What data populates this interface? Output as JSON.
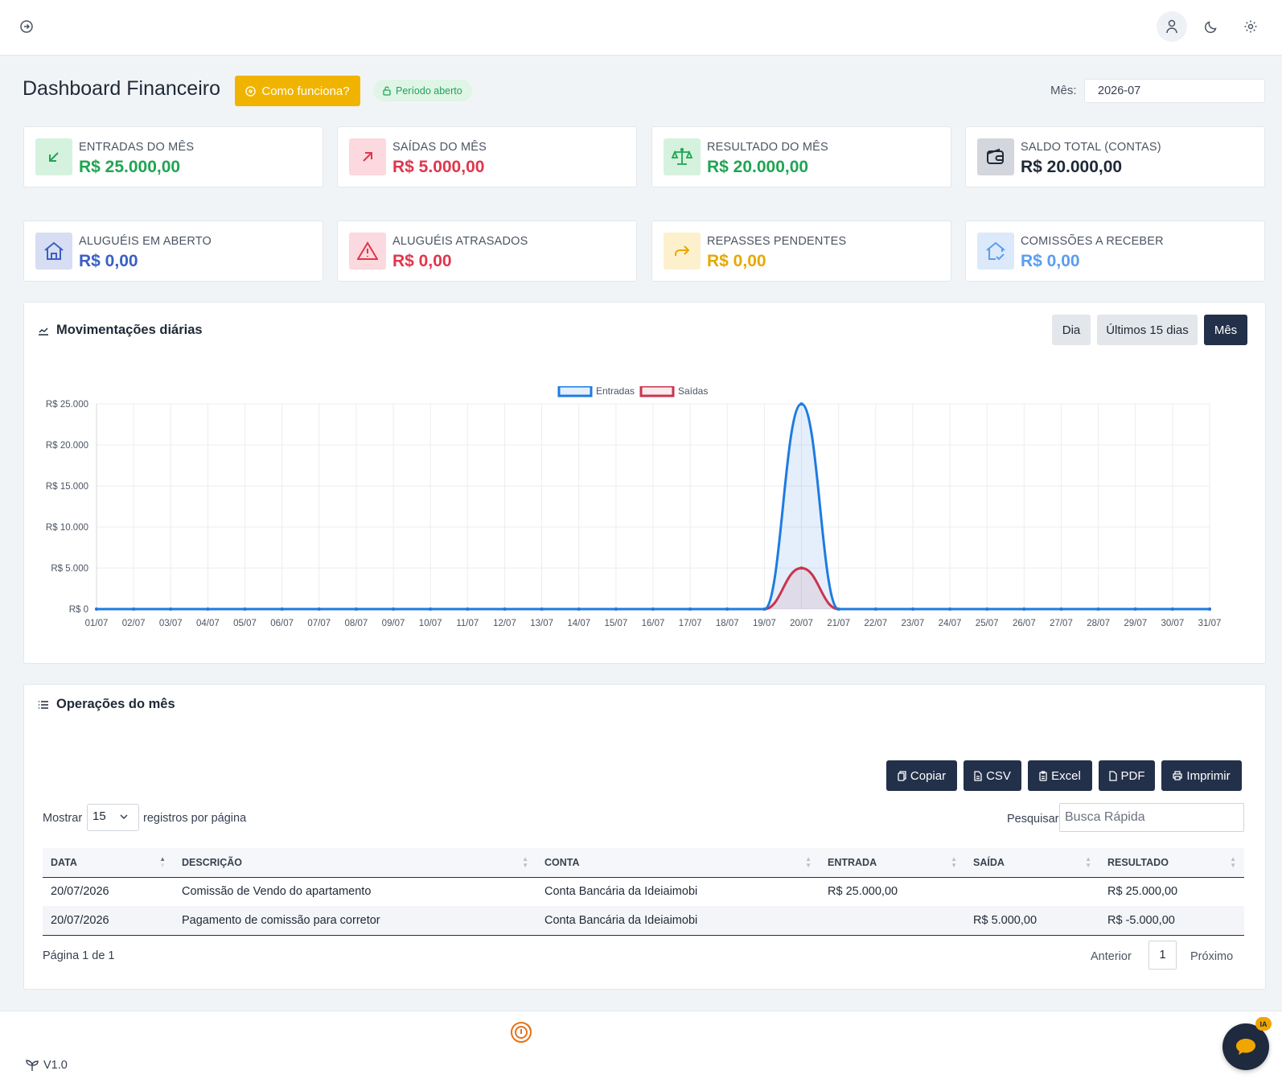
{
  "topbar": {
    "icons": [
      "sidebar-toggle-icon",
      "user-icon",
      "moon-icon",
      "gear-icon"
    ]
  },
  "header": {
    "title": "Dashboard Financeiro",
    "help_button": "Como funciona?",
    "period_badge": "Período aberto",
    "month_label": "Mês:",
    "month_value": "2026-07"
  },
  "cards": [
    {
      "label": "ENTRADAS DO MÊS",
      "value": "R$ 25.000,00",
      "color": "#1fa552",
      "icon": "arrow-down-left-icon"
    },
    {
      "label": "SAÍDAS DO MÊS",
      "value": "R$ 5.000,00",
      "color": "#e0364c",
      "icon": "arrow-up-right-icon"
    },
    {
      "label": "RESULTADO DO MÊS",
      "value": "R$ 20.000,00",
      "color": "#1fa552",
      "icon": "scale-icon"
    },
    {
      "label": "SALDO TOTAL (CONTAS)",
      "value": "R$ 20.000,00",
      "color": "#1f2937",
      "icon": "wallet-icon"
    },
    {
      "label": "ALUGUÉIS EM ABERTO",
      "value": "R$ 0,00",
      "color": "#3a5fc4",
      "icon": "house-icon"
    },
    {
      "label": "ALUGUÉIS ATRASADOS",
      "value": "R$ 0,00",
      "color": "#e0364c",
      "icon": "warning-icon"
    },
    {
      "label": "REPASSES PENDENTES",
      "value": "R$ 0,00",
      "color": "#e6a800",
      "icon": "share-icon"
    },
    {
      "label": "COMISSÕES A RECEBER",
      "value": "R$ 0,00",
      "color": "#5a9df0",
      "icon": "house-check-icon"
    }
  ],
  "chart_panel": {
    "title": "Movimentações diárias",
    "buttons": [
      "Dia",
      "Últimos 15 dias",
      "Mês"
    ],
    "active_button": "Mês"
  },
  "chart_data": {
    "type": "line",
    "categories": [
      "01/07",
      "02/07",
      "03/07",
      "04/07",
      "05/07",
      "06/07",
      "07/07",
      "08/07",
      "09/07",
      "10/07",
      "11/07",
      "12/07",
      "13/07",
      "14/07",
      "15/07",
      "16/07",
      "17/07",
      "18/07",
      "19/07",
      "20/07",
      "21/07",
      "22/07",
      "23/07",
      "24/07",
      "25/07",
      "26/07",
      "27/07",
      "28/07",
      "29/07",
      "30/07",
      "31/07"
    ],
    "series": [
      {
        "name": "Entradas",
        "color": "#1e7be0",
        "values": [
          0,
          0,
          0,
          0,
          0,
          0,
          0,
          0,
          0,
          0,
          0,
          0,
          0,
          0,
          0,
          0,
          0,
          0,
          0,
          25000,
          0,
          0,
          0,
          0,
          0,
          0,
          0,
          0,
          0,
          0,
          0
        ]
      },
      {
        "name": "Saídas",
        "color": "#c9344f",
        "values": [
          0,
          0,
          0,
          0,
          0,
          0,
          0,
          0,
          0,
          0,
          0,
          0,
          0,
          0,
          0,
          0,
          0,
          0,
          0,
          5000,
          0,
          0,
          0,
          0,
          0,
          0,
          0,
          0,
          0,
          0,
          0
        ]
      }
    ],
    "y_ticks": [
      "R$ 0",
      "R$ 5.000",
      "R$ 10.000",
      "R$ 15.000",
      "R$ 20.000",
      "R$ 25.000"
    ],
    "ylim": [
      0,
      25000
    ],
    "grid": true,
    "legend": "top-center"
  },
  "ops_panel": {
    "title": "Operações do mês",
    "export_buttons": [
      "Copiar",
      "CSV",
      "Excel",
      "PDF",
      "Imprimir"
    ],
    "show_label": "Mostrar",
    "page_size": "15",
    "per_page_label": "registros por página",
    "search_label": "Pesquisar",
    "search_placeholder": "Busca Rápida",
    "columns": [
      "DATA",
      "DESCRIÇÃO",
      "CONTA",
      "ENTRADA",
      "SAÍDA",
      "RESULTADO"
    ],
    "rows": [
      {
        "data": "20/07/2026",
        "descricao": "Comissão de Vendo do apartamento",
        "conta": "Conta Bancária da Ideiaimobi",
        "entrada": "R$ 25.000,00",
        "saida": "",
        "resultado": "R$ 25.000,00"
      },
      {
        "data": "20/07/2026",
        "descricao": "Pagamento de comissão para corretor",
        "conta": "Conta Bancária da Ideiaimobi",
        "entrada": "",
        "saida": "R$ 5.000,00",
        "resultado": "R$ -5.000,00"
      }
    ],
    "page_info": "Página 1 de 1",
    "prev_label": "Anterior",
    "current_page": "1",
    "next_label": "Próximo"
  },
  "footer": {
    "version": "V1.0",
    "chat_badge": "IA"
  }
}
